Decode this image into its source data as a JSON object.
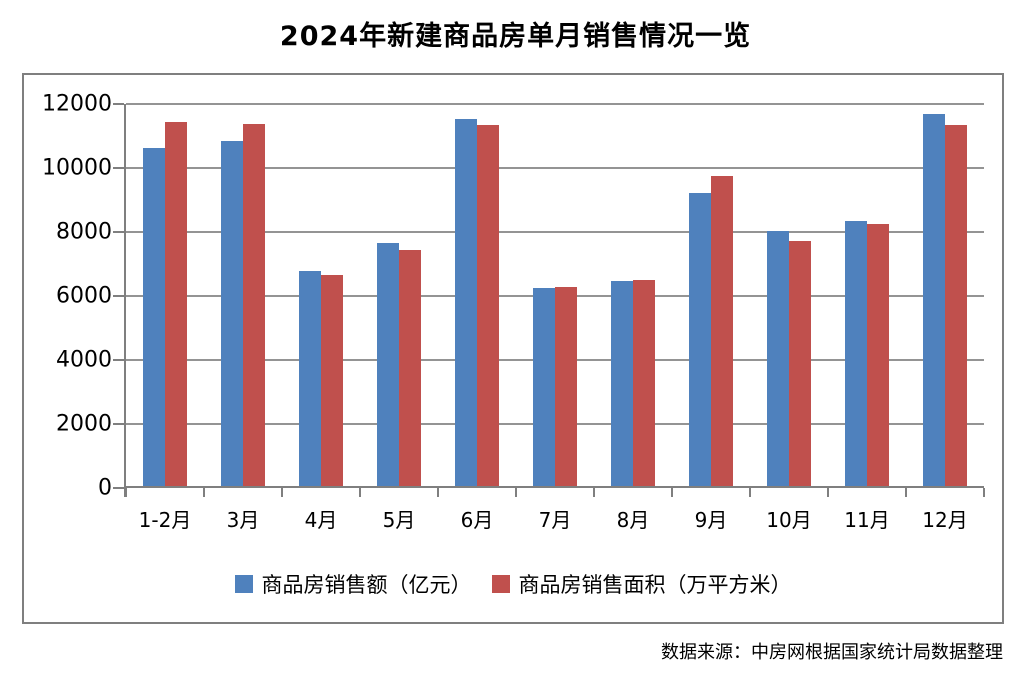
{
  "title": "2024年新建商品房单月销售情况一览",
  "source_note": "数据来源：中房网根据国家统计局数据整理",
  "colors": {
    "series_sales_amount": "#4F81BD",
    "series_sales_area": "#C0504D",
    "gridline": "#949494",
    "axis": "#7f7f7f",
    "frame_border": "#7f7f7f",
    "text": "#000000"
  },
  "chart_data": {
    "type": "bar",
    "title": "2024年新建商品房单月销售情况一览",
    "categories": [
      "1-2月",
      "3月",
      "4月",
      "5月",
      "6月",
      "7月",
      "8月",
      "9月",
      "10月",
      "11月",
      "12月"
    ],
    "series": [
      {
        "name": "商品房销售额（亿元）",
        "color": "#4F81BD",
        "values": [
          10566,
          10789,
          6712,
          7598,
          11468,
          6197,
          6393,
          9157,
          7975,
          8270,
          11625
        ]
      },
      {
        "name": "商品房销售面积（万平方米）",
        "color": "#C0504D",
        "values": [
          11369,
          11299,
          6584,
          7390,
          11274,
          6233,
          6453,
          9682,
          7646,
          8188,
          11267
        ]
      }
    ],
    "xlabel": "",
    "ylabel": "",
    "ylim": [
      0,
      12000
    ],
    "ytick_interval": 2000,
    "yticks": [
      0,
      2000,
      4000,
      6000,
      8000,
      10000,
      12000
    ],
    "grid": true,
    "legend_position": "bottom",
    "annotation": "数据来源：中房网根据国家统计局数据整理"
  }
}
